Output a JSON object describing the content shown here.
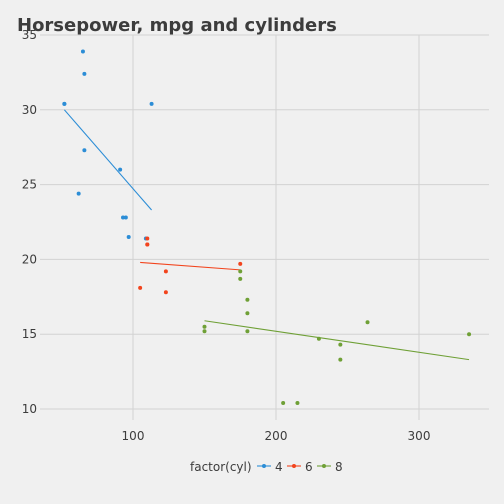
{
  "chart_data": {
    "type": "scatter",
    "title": "Horsepower, mpg and cylinders",
    "xlabel": "",
    "ylabel": "",
    "xlim": [
      40,
      350
    ],
    "ylim": [
      9,
      35
    ],
    "x_ticks": [
      100,
      200,
      300
    ],
    "y_ticks": [
      10,
      15,
      20,
      25,
      30,
      35
    ],
    "grid": true,
    "legend_title": "factor(cyl)",
    "legend_position": "bottom",
    "series": [
      {
        "name": "4",
        "color": "#2c8dd6",
        "points": [
          [
            93,
            22.8
          ],
          [
            62,
            24.4
          ],
          [
            95,
            22.8
          ],
          [
            66,
            32.4
          ],
          [
            52,
            30.4
          ],
          [
            65,
            33.9
          ],
          [
            97,
            21.5
          ],
          [
            66,
            27.3
          ],
          [
            91,
            26.0
          ],
          [
            113,
            30.4
          ],
          [
            109,
            21.4
          ],
          [
            52,
            30.4
          ]
        ],
        "fit": [
          [
            52,
            30.0
          ],
          [
            113,
            23.3
          ]
        ]
      },
      {
        "name": "6",
        "color": "#f2441d",
        "points": [
          [
            110,
            21.0
          ],
          [
            110,
            21.0
          ],
          [
            110,
            21.4
          ],
          [
            105,
            18.1
          ],
          [
            123,
            19.2
          ],
          [
            123,
            17.8
          ],
          [
            175,
            19.7
          ]
        ],
        "fit": [
          [
            105,
            19.8
          ],
          [
            175,
            19.3
          ]
        ]
      },
      {
        "name": "8",
        "color": "#6fa036",
        "points": [
          [
            175,
            18.7
          ],
          [
            245,
            14.3
          ],
          [
            180,
            16.4
          ],
          [
            180,
            17.3
          ],
          [
            180,
            15.2
          ],
          [
            205,
            10.4
          ],
          [
            215,
            10.4
          ],
          [
            230,
            14.7
          ],
          [
            150,
            15.5
          ],
          [
            150,
            15.2
          ],
          [
            245,
            13.3
          ],
          [
            175,
            19.2
          ],
          [
            264,
            15.8
          ],
          [
            335,
            15.0
          ]
        ],
        "fit": [
          [
            150,
            15.9
          ],
          [
            335,
            13.3
          ]
        ]
      }
    ]
  }
}
